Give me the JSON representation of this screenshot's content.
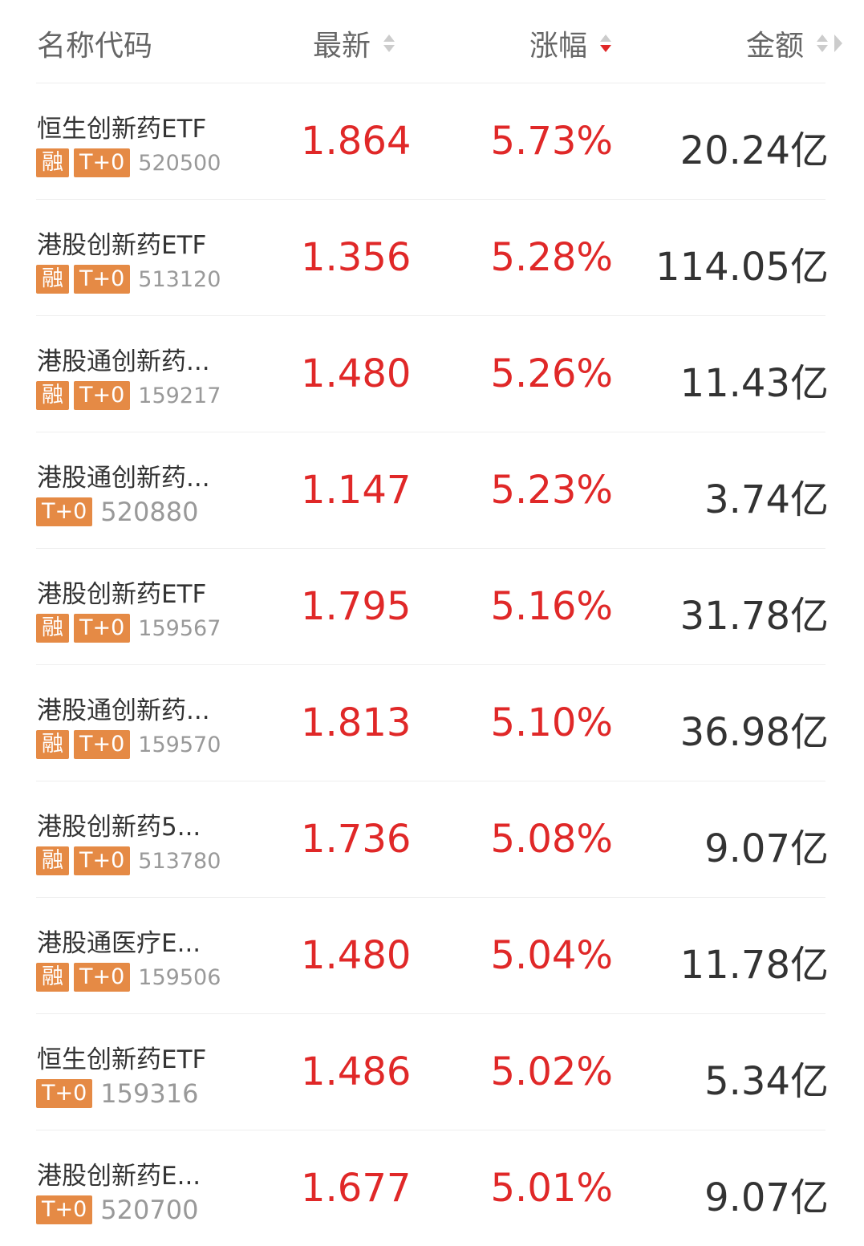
{
  "header": {
    "name_code": "名称代码",
    "latest": "最新",
    "change": "涨幅",
    "amount": "金额",
    "sort_active": "change-descending"
  },
  "colors": {
    "up": "#e02828",
    "badge": "#e58a45",
    "text": "#333333",
    "muted": "#999999"
  },
  "rows": [
    {
      "name": "恒生创新药ETF",
      "tags": [
        "融",
        "T+0"
      ],
      "code": "520500",
      "price": "1.864",
      "change": "5.73%",
      "amount": "20.24亿"
    },
    {
      "name": "港股创新药ETF",
      "tags": [
        "融",
        "T+0"
      ],
      "code": "513120",
      "price": "1.356",
      "change": "5.28%",
      "amount": "114.05亿"
    },
    {
      "name": "港股通创新药...",
      "tags": [
        "融",
        "T+0"
      ],
      "code": "159217",
      "price": "1.480",
      "change": "5.26%",
      "amount": "11.43亿"
    },
    {
      "name": "港股通创新药...",
      "tags": [
        "T+0"
      ],
      "code": "520880",
      "price": "1.147",
      "change": "5.23%",
      "amount": "3.74亿"
    },
    {
      "name": "港股创新药ETF",
      "tags": [
        "融",
        "T+0"
      ],
      "code": "159567",
      "price": "1.795",
      "change": "5.16%",
      "amount": "31.78亿"
    },
    {
      "name": "港股通创新药...",
      "tags": [
        "融",
        "T+0"
      ],
      "code": "159570",
      "price": "1.813",
      "change": "5.10%",
      "amount": "36.98亿"
    },
    {
      "name": "港股创新药5...",
      "tags": [
        "融",
        "T+0"
      ],
      "code": "513780",
      "price": "1.736",
      "change": "5.08%",
      "amount": "9.07亿"
    },
    {
      "name": "港股通医疗E...",
      "tags": [
        "融",
        "T+0"
      ],
      "code": "159506",
      "price": "1.480",
      "change": "5.04%",
      "amount": "11.78亿"
    },
    {
      "name": "恒生创新药ETF",
      "tags": [
        "T+0"
      ],
      "code": "159316",
      "price": "1.486",
      "change": "5.02%",
      "amount": "5.34亿"
    },
    {
      "name": "港股创新药E...",
      "tags": [
        "T+0"
      ],
      "code": "520700",
      "price": "1.677",
      "change": "5.01%",
      "amount": "9.07亿"
    }
  ]
}
